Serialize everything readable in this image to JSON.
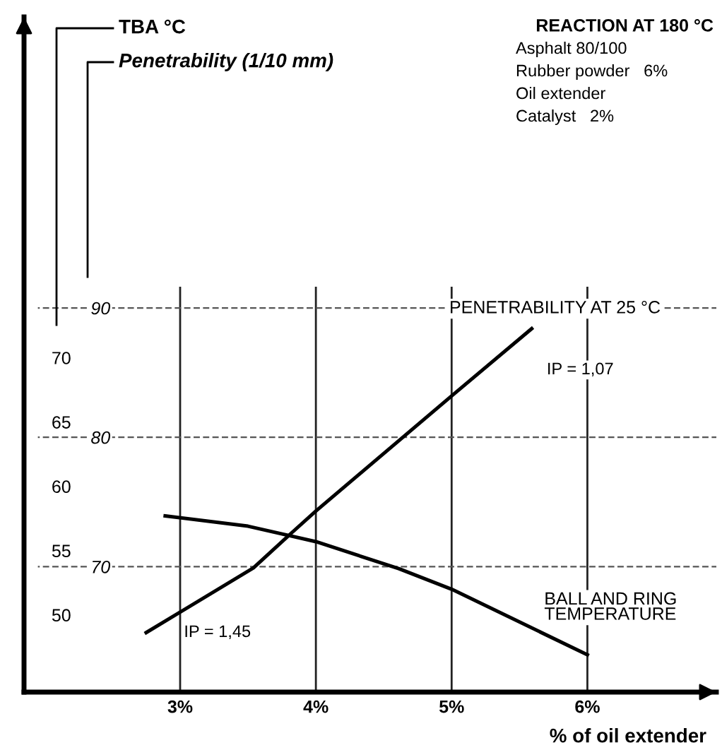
{
  "chart_data": {
    "type": "line",
    "title": "REACTION AT 180 °C",
    "annotations": [
      "TBA °C",
      "Penetrability (1/10 mm)",
      "Asphalt 80/100",
      "Rubber powder   6%",
      "Oil extender",
      "Catalyst   2%",
      "IP = 1,07",
      "IP = 1,45"
    ],
    "xlabel": "% of oil extender",
    "series": [
      {
        "name": "PENETRABILITY AT 25 °C",
        "color": "#000000",
        "x": [
          2.75,
          3.54,
          3.82,
          4.0,
          5.0,
          5.59
        ],
        "values": [
          64.9,
          69.9,
          72.6,
          74.3,
          83.2,
          88.4
        ]
      },
      {
        "name": "BALL AND RING\nTEMPERATURE",
        "color": "#000000",
        "axis": "y2",
        "x": [
          2.89,
          3.5,
          4.0,
          4.61,
          5.0,
          6.0
        ],
        "values": [
          57.7,
          56.9,
          55.7,
          53.6,
          52.0,
          46.9
        ]
      }
    ],
    "xlim": [
      1.85,
      6.95
    ],
    "xticks": [
      {
        "value": 3,
        "label": "3%"
      },
      {
        "value": 4,
        "label": "4%"
      },
      {
        "value": 5,
        "label": "5%"
      },
      {
        "value": 6,
        "label": "6%"
      }
    ],
    "ylim": [
      60.3,
      112.5
    ],
    "yticks": [
      70,
      80,
      90
    ],
    "y2lim": [
      44.0,
      96.5
    ],
    "y2ticks": [
      50,
      55,
      60,
      65,
      70
    ],
    "grid": true,
    "marker": "none",
    "line_style": "solid"
  }
}
